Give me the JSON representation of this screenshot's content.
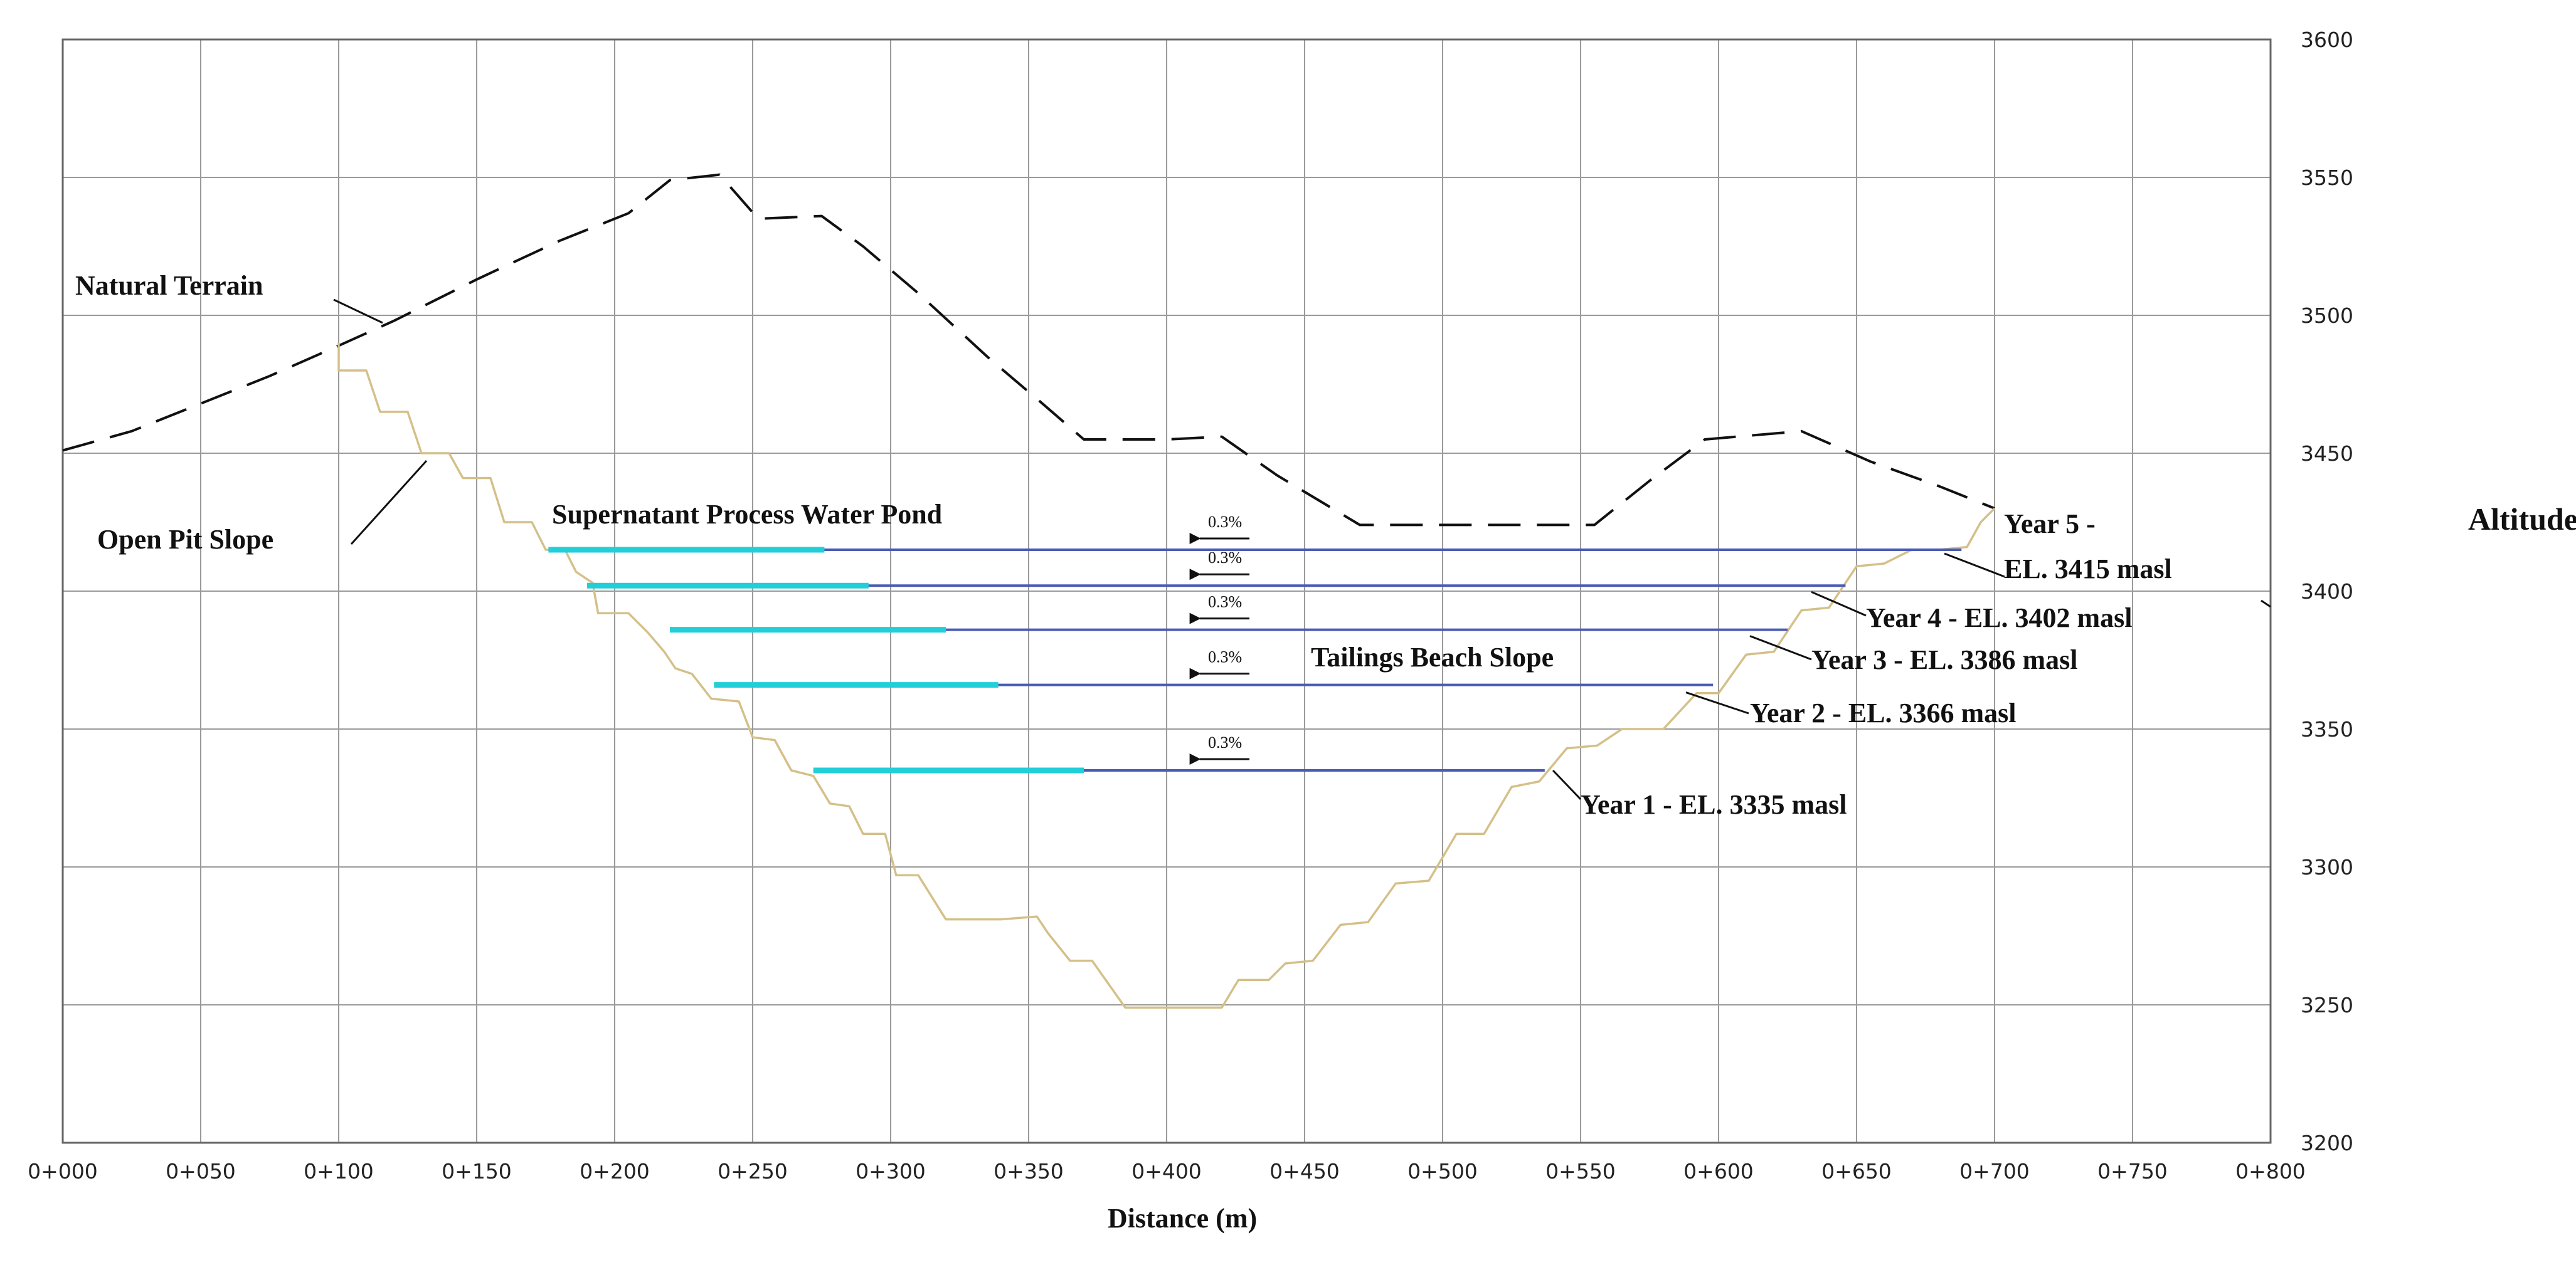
{
  "chart_data": {
    "type": "line",
    "title": "",
    "xlabel": "Distance (m)",
    "ylabel": "Altitude (masl)",
    "xlim": [
      0,
      800
    ],
    "ylim": [
      3200,
      3600
    ],
    "grid": true,
    "x_tick_labels": [
      "0+000",
      "0+050",
      "0+100",
      "0+150",
      "0+200",
      "0+250",
      "0+300",
      "0+350",
      "0+400",
      "0+450",
      "0+500",
      "0+550",
      "0+600",
      "0+650",
      "0+700",
      "0+750",
      "0+800"
    ],
    "y_tick_labels": [
      "3200",
      "3250",
      "3300",
      "3350",
      "3400",
      "3450",
      "3500",
      "3550",
      "3600"
    ],
    "series": [
      {
        "name": "Natural Terrain",
        "style": "dashed",
        "color": "#111111",
        "points": [
          [
            0,
            3451
          ],
          [
            25,
            3458
          ],
          [
            50,
            3468
          ],
          [
            75,
            3478
          ],
          [
            100,
            3489
          ],
          [
            120,
            3498
          ],
          [
            150,
            3513
          ],
          [
            180,
            3527
          ],
          [
            205,
            3537
          ],
          [
            220,
            3549
          ],
          [
            238,
            3551
          ],
          [
            252,
            3535
          ],
          [
            275,
            3536
          ],
          [
            290,
            3525
          ],
          [
            310,
            3508
          ],
          [
            335,
            3485
          ],
          [
            355,
            3468
          ],
          [
            370,
            3455
          ],
          [
            400,
            3455
          ],
          [
            420,
            3456
          ],
          [
            440,
            3442
          ],
          [
            460,
            3430
          ],
          [
            470,
            3424
          ],
          [
            510,
            3424
          ],
          [
            555,
            3424
          ],
          [
            575,
            3440
          ],
          [
            595,
            3455
          ],
          [
            630,
            3458
          ],
          [
            655,
            3447
          ],
          [
            680,
            3438
          ],
          [
            700,
            3430
          ]
        ]
      },
      {
        "name": "Open Pit Slope",
        "style": "stepped",
        "color": "#d4c088",
        "points": [
          [
            100,
            3490
          ],
          [
            100,
            3480
          ],
          [
            110,
            3480
          ],
          [
            115,
            3465
          ],
          [
            125,
            3465
          ],
          [
            130,
            3450
          ],
          [
            140,
            3450
          ],
          [
            145,
            3441
          ],
          [
            155,
            3441
          ],
          [
            160,
            3425
          ],
          [
            170,
            3425
          ],
          [
            175,
            3415
          ],
          [
            182,
            3415
          ],
          [
            186,
            3407
          ],
          [
            192,
            3403
          ],
          [
            194,
            3392
          ],
          [
            205,
            3392
          ],
          [
            212,
            3385
          ],
          [
            218,
            3378
          ],
          [
            222,
            3372
          ],
          [
            228,
            3370
          ],
          [
            235,
            3361
          ],
          [
            245,
            3360
          ],
          [
            250,
            3347
          ],
          [
            258,
            3346
          ],
          [
            264,
            3335
          ],
          [
            272,
            3333
          ],
          [
            278,
            3323
          ],
          [
            285,
            3322
          ],
          [
            290,
            3312
          ],
          [
            298,
            3312
          ],
          [
            302,
            3297
          ],
          [
            310,
            3297
          ],
          [
            320,
            3281
          ],
          [
            340,
            3281
          ],
          [
            353,
            3282
          ],
          [
            357,
            3276
          ],
          [
            365,
            3266
          ],
          [
            373,
            3266
          ],
          [
            385,
            3249
          ],
          [
            420,
            3249
          ],
          [
            426,
            3259
          ],
          [
            437,
            3259
          ],
          [
            443,
            3265
          ],
          [
            453,
            3266
          ],
          [
            463,
            3279
          ],
          [
            473,
            3280
          ],
          [
            483,
            3294
          ],
          [
            495,
            3295
          ],
          [
            505,
            3312
          ],
          [
            515,
            3312
          ],
          [
            525,
            3329
          ],
          [
            535,
            3331
          ],
          [
            545,
            3343
          ],
          [
            556,
            3344
          ],
          [
            565,
            3350
          ],
          [
            580,
            3350
          ],
          [
            592,
            3363
          ],
          [
            600,
            3363
          ],
          [
            610,
            3377
          ],
          [
            620,
            3378
          ],
          [
            630,
            3393
          ],
          [
            640,
            3394
          ],
          [
            650,
            3409
          ],
          [
            660,
            3410
          ],
          [
            670,
            3415
          ],
          [
            680,
            3415
          ],
          [
            690,
            3416
          ],
          [
            695,
            3425
          ],
          [
            700,
            3430
          ]
        ]
      }
    ],
    "pond_levels": [
      {
        "label": "Year 1 - EL. 3335 masl",
        "elevation": 3335,
        "x_start": 272,
        "x_end": 537,
        "pond_end": 370,
        "slope": "0.3%"
      },
      {
        "label": "Year 2 - EL. 3366 masl",
        "elevation": 3366,
        "x_start": 236,
        "x_end": 598,
        "pond_end": 339,
        "slope": "0.3%"
      },
      {
        "label": "Year 3 - EL. 3386 masl",
        "elevation": 3386,
        "x_start": 220,
        "x_end": 625,
        "pond_end": 320,
        "slope": "0.3%"
      },
      {
        "label": "Year 4 - EL. 3402 masl",
        "elevation": 3402,
        "x_start": 190,
        "x_end": 646,
        "pond_end": 292,
        "slope": "0.3%"
      },
      {
        "label_line1": "Year 5 -",
        "label_line2": "EL. 3415 masl",
        "elevation": 3415,
        "x_start": 176,
        "x_end": 688,
        "pond_end": 276,
        "slope": "0.3%"
      }
    ],
    "annotations": {
      "natural_terrain": "Natural Terrain",
      "open_pit_slope": "Open Pit Slope",
      "pond": "Supernatant Process Water Pond",
      "beach": "Tailings Beach Slope"
    },
    "colors": {
      "grid": "#9a9a9a",
      "pond": "#22cfd9",
      "beach": "#4a5bb5",
      "pit": "#d4c088",
      "terrain": "#111111"
    }
  }
}
